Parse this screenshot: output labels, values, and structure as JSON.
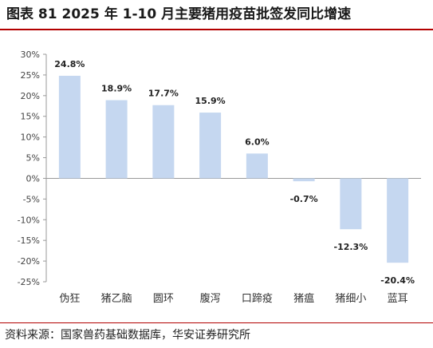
{
  "title": "图表 81 2025 年 1-10 月主要猪用疫苗批签发同比增速",
  "source": "资料来源：国家兽药基础数据库，华安证券研究所",
  "chart_data": {
    "type": "bar",
    "categories": [
      "伪狂",
      "猪乙脑",
      "圆环",
      "腹泻",
      "口蹄疫",
      "猪瘟",
      "猪细小",
      "蓝耳"
    ],
    "values": [
      24.8,
      18.9,
      17.7,
      15.9,
      6.0,
      -0.7,
      -12.3,
      -20.4
    ],
    "data_labels": [
      "24.8%",
      "18.9%",
      "17.7%",
      "15.9%",
      "6.0%",
      "-0.7%",
      "-12.3%",
      "-20.4%"
    ],
    "yticks": [
      "30%",
      "25%",
      "20%",
      "15%",
      "10%",
      "5%",
      "0%",
      "-5%",
      "-10%",
      "-15%",
      "-20%",
      "-25%"
    ],
    "ylim": [
      -25,
      30
    ],
    "bar_color": "#c5d7f0",
    "axis_color": "#999999",
    "grid": false
  }
}
